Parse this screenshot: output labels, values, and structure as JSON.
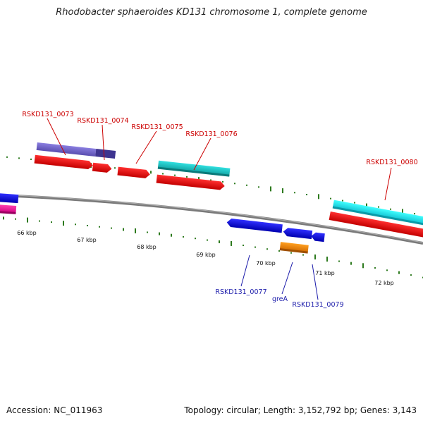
{
  "title": "Rhodobacter sphaeroides KD131 chromosome 1, complete genome",
  "footer": {
    "accession": "Accession: NC_011963",
    "summary": "Topology: circular; Length: 3,152,792 bp; Genes: 3,143"
  },
  "colors": {
    "backbone": "#808080",
    "forward_label": "#cc0000",
    "reverse_label": "#1a1aaa",
    "gc_ticks": "#2d7a1e"
  },
  "scale_labels": [
    "66 kbp",
    "67 kbp",
    "68 kbp",
    "69 kbp",
    "70 kbp",
    "71 kbp",
    "72 kbp"
  ],
  "gene_labels": {
    "top": [
      "RSKD131_0073",
      "RSKD131_0074",
      "RSKD131_0075",
      "RSKD131_0076",
      "RSKD131_0080"
    ],
    "bottom": [
      "RSKD131_0077",
      "greA",
      "RSKD131_0079"
    ]
  }
}
